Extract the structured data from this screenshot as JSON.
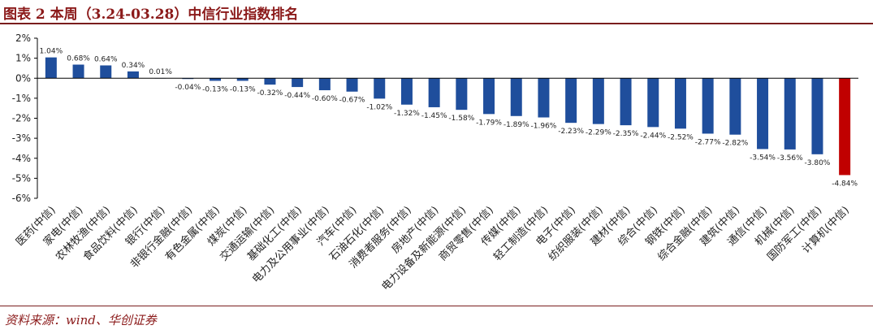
{
  "figure": {
    "title": "图表 2   本周（3.24-03.28）中信行业指数排名",
    "source": "资料来源：wind、华创证券"
  },
  "chart_data": {
    "type": "bar",
    "categories": [
      "医药(中信)",
      "家电(中信)",
      "农林牧渔(中信)",
      "食品饮料(中信)",
      "银行(中信)",
      "非银行金融(中信)",
      "有色金属(中信)",
      "煤炭(中信)",
      "交通运输(中信)",
      "基础化工(中信)",
      "电力及公用事业(中信)",
      "汽车(中信)",
      "石油石化(中信)",
      "消费者服务(中信)",
      "房地产(中信)",
      "电力设备及新能源(中信)",
      "商贸零售(中信)",
      "传媒(中信)",
      "轻工制造(中信)",
      "电子(中信)",
      "纺织服装(中信)",
      "建材(中信)",
      "综合(中信)",
      "钢铁(中信)",
      "综合金融(中信)",
      "建筑(中信)",
      "通信(中信)",
      "机械(中信)",
      "国防军工(中信)",
      "计算机(中信)"
    ],
    "values": [
      1.04,
      0.68,
      0.64,
      0.34,
      0.01,
      -0.04,
      -0.13,
      -0.13,
      -0.32,
      -0.44,
      -0.6,
      -0.67,
      -1.02,
      -1.32,
      -1.45,
      -1.58,
      -1.79,
      -1.89,
      -1.96,
      -2.23,
      -2.29,
      -2.35,
      -2.44,
      -2.52,
      -2.77,
      -2.82,
      -3.54,
      -3.56,
      -3.8,
      -4.84
    ],
    "data_labels": [
      "1.04%",
      "0.68%",
      "0.64%",
      "0.34%",
      "0.01%",
      "-0.04%",
      "-0.13%",
      "-0.13%",
      "-0.32%",
      "-0.44%",
      "-0.60%",
      "-0.67%",
      "-1.02%",
      "-1.32%",
      "-1.45%",
      "-1.58%",
      "-1.79%",
      "-1.89%",
      "-1.96%",
      "-2.23%",
      "-2.29%",
      "-2.35%",
      "-2.44%",
      "-2.52%",
      "-2.77%",
      "-2.82%",
      "-3.54%",
      "-3.56%",
      "-3.80%",
      "-4.84%"
    ],
    "yticks": [
      2,
      1,
      0,
      -1,
      -2,
      -3,
      -4,
      -5,
      -6
    ],
    "ytick_labels": [
      "2%",
      "1%",
      "0%",
      "-1%",
      "-2%",
      "-3%",
      "-4%",
      "-5%",
      "-6%"
    ],
    "ylim": [
      -6,
      2
    ],
    "xlabel": "",
    "ylabel": "",
    "grid": false,
    "legend": "none",
    "colors": {
      "default_bar": "#1f4e9c",
      "highlight_bar": "#c00000",
      "axis": "#000000",
      "text": "#222222"
    },
    "highlight_index": 29
  }
}
